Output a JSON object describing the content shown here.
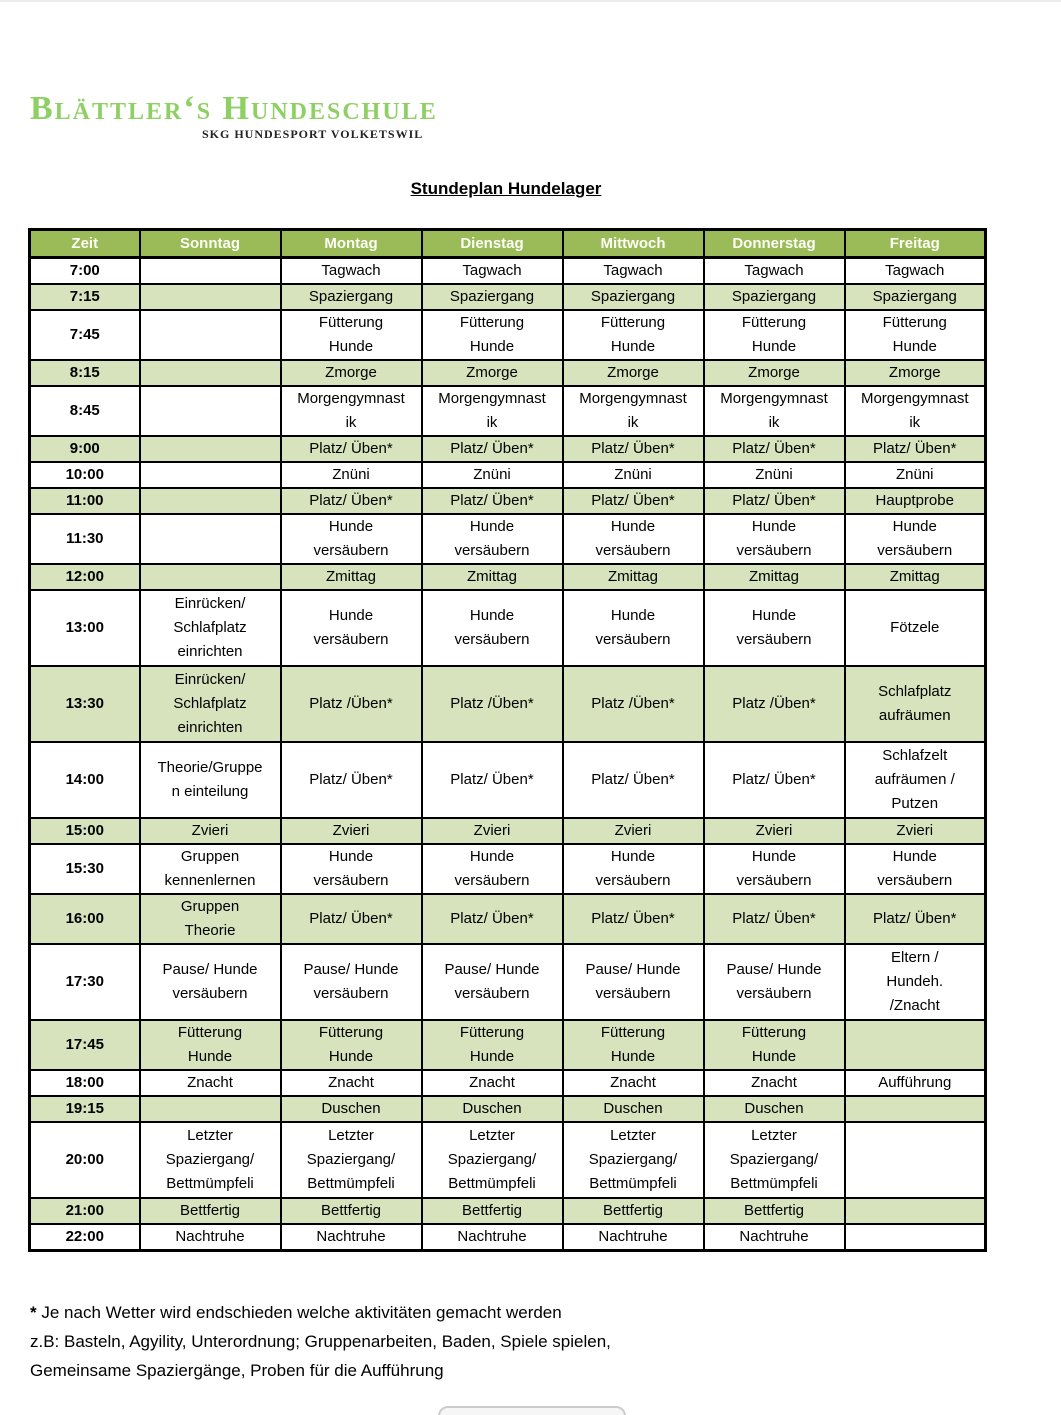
{
  "logo": {
    "title": "Blättler‘s Hundeschule",
    "subtitle": "SKG HUNDESPORT VOLKETSWIL"
  },
  "title": "Stundeplan Hundelager",
  "colors": {
    "logo_green": "#8ED063",
    "header_bg": "#9BBB59",
    "header_text": "#FDFEF6",
    "row_green": "#D6E3BC",
    "border": "#000000"
  },
  "table": {
    "columns": [
      "Zeit",
      "Sonntag",
      "Montag",
      "Dienstag",
      "Mittwoch",
      "Donnerstag",
      "Freitag"
    ],
    "rows": [
      {
        "time": "7:00",
        "shade": false,
        "lines": 1,
        "cells": [
          "",
          "Tagwach",
          "Tagwach",
          "Tagwach",
          "Tagwach",
          "Tagwach"
        ]
      },
      {
        "time": "7:15",
        "shade": true,
        "lines": 1,
        "cells": [
          "",
          "Spaziergang",
          "Spaziergang",
          "Spaziergang",
          "Spaziergang",
          "Spaziergang"
        ]
      },
      {
        "time": "7:45",
        "shade": false,
        "lines": 2,
        "cells": [
          "",
          "Fütterung\nHunde",
          "Fütterung\nHunde",
          "Fütterung\nHunde",
          "Fütterung\nHunde",
          "Fütterung\nHunde"
        ]
      },
      {
        "time": "8:15",
        "shade": true,
        "lines": 1,
        "cells": [
          "",
          "Zmorge",
          "Zmorge",
          "Zmorge",
          "Zmorge",
          "Zmorge"
        ]
      },
      {
        "time": "8:45",
        "shade": false,
        "lines": 2,
        "cells": [
          "",
          "Morgengymnast\nik",
          "Morgengymnast\nik",
          "Morgengymnast\nik",
          "Morgengymnast\nik",
          "Morgengymnast\nik"
        ]
      },
      {
        "time": "9:00",
        "shade": true,
        "lines": 1,
        "cells": [
          "",
          "Platz/ Üben*",
          "Platz/ Üben*",
          "Platz/ Üben*",
          "Platz/ Üben*",
          "Platz/ Üben*"
        ]
      },
      {
        "time": "10:00",
        "shade": false,
        "lines": 1,
        "cells": [
          "",
          "Znüni",
          "Znüni",
          "Znüni",
          "Znüni",
          "Znüni"
        ]
      },
      {
        "time": "11:00",
        "shade": true,
        "lines": 1,
        "cells": [
          "",
          "Platz/ Üben*",
          "Platz/ Üben*",
          "Platz/ Üben*",
          "Platz/ Üben*",
          "Hauptprobe"
        ]
      },
      {
        "time": "11:30",
        "shade": false,
        "lines": 2,
        "cells": [
          "",
          "Hunde\nversäubern",
          "Hunde\nversäubern",
          "Hunde\nversäubern",
          "Hunde\nversäubern",
          "Hunde\nversäubern"
        ]
      },
      {
        "time": "12:00",
        "shade": true,
        "lines": 1,
        "cells": [
          "",
          "Zmittag",
          "Zmittag",
          "Zmittag",
          "Zmittag",
          "Zmittag"
        ]
      },
      {
        "time": "13:00",
        "shade": false,
        "lines": 3,
        "cells": [
          "Einrücken/\nSchlafplatz\neinrichten",
          "Hunde\nversäubern",
          "Hunde\nversäubern",
          "Hunde\nversäubern",
          "Hunde\nversäubern",
          "Fötzele"
        ]
      },
      {
        "time": "13:30",
        "shade": true,
        "lines": 3,
        "cells": [
          "Einrücken/\nSchlafplatz\neinrichten",
          "Platz /Üben*",
          "Platz /Üben*",
          "Platz /Üben*",
          "Platz /Üben*",
          "Schlafplatz\naufräumen"
        ]
      },
      {
        "time": "14:00",
        "shade": false,
        "lines": 3,
        "cells": [
          "Theorie/Gruppe\nn einteilung",
          "Platz/ Üben*",
          "Platz/ Üben*",
          "Platz/ Üben*",
          "Platz/ Üben*",
          "Schlafzelt\naufräumen /\nPutzen"
        ]
      },
      {
        "time": "15:00",
        "shade": true,
        "lines": 1,
        "cells": [
          "Zvieri",
          "Zvieri",
          "Zvieri",
          "Zvieri",
          "Zvieri",
          "Zvieri"
        ]
      },
      {
        "time": "15:30",
        "shade": false,
        "lines": 2,
        "cells": [
          "Gruppen\nkennenlernen",
          "Hunde\nversäubern",
          "Hunde\nversäubern",
          "Hunde\nversäubern",
          "Hunde\nversäubern",
          "Hunde\nversäubern"
        ]
      },
      {
        "time": "16:00",
        "shade": true,
        "lines": 2,
        "cells": [
          "Gruppen\nTheorie",
          "Platz/ Üben*",
          "Platz/ Üben*",
          "Platz/ Üben*",
          "Platz/ Üben*",
          "Platz/ Üben*"
        ]
      },
      {
        "time": "17:30",
        "shade": false,
        "lines": 3,
        "cells": [
          "Pause/ Hunde\nversäubern",
          "Pause/ Hunde\nversäubern",
          "Pause/ Hunde\nversäubern",
          "Pause/ Hunde\nversäubern",
          "Pause/ Hunde\nversäubern",
          "Eltern /\nHundeh.\n/Znacht"
        ]
      },
      {
        "time": "17:45",
        "shade": true,
        "lines": 2,
        "cells": [
          "Fütterung\nHunde",
          "Fütterung\nHunde",
          "Fütterung\nHunde",
          "Fütterung\nHunde",
          "Fütterung\nHunde",
          ""
        ]
      },
      {
        "time": "18:00",
        "shade": false,
        "lines": 1,
        "cells": [
          "Znacht",
          "Znacht",
          "Znacht",
          "Znacht",
          "Znacht",
          "Aufführung"
        ]
      },
      {
        "time": "19:15",
        "shade": true,
        "lines": 1,
        "cells": [
          "",
          "Duschen",
          "Duschen",
          "Duschen",
          "Duschen",
          ""
        ]
      },
      {
        "time": "20:00",
        "shade": false,
        "lines": 3,
        "cells": [
          "Letzter\nSpaziergang/\nBettmümpfeli",
          "Letzter\nSpaziergang/\nBettmümpfeli",
          "Letzter\nSpaziergang/\nBettmümpfeli",
          "Letzter\nSpaziergang/\nBettmümpfeli",
          "Letzter\nSpaziergang/\nBettmümpfeli",
          ""
        ]
      },
      {
        "time": "21:00",
        "shade": true,
        "lines": 1,
        "cells": [
          "Bettfertig",
          "Bettfertig",
          "Bettfertig",
          "Bettfertig",
          "Bettfertig",
          ""
        ]
      },
      {
        "time": "22:00",
        "shade": false,
        "lines": 1,
        "cells": [
          "Nachtruhe",
          "Nachtruhe",
          "Nachtruhe",
          "Nachtruhe",
          "Nachtruhe",
          ""
        ]
      }
    ]
  },
  "footnote": {
    "marker": "*",
    "line1": "Je nach Wetter wird endschieden welche aktivitäten gemacht werden",
    "line2": "z.B: Basteln, Agyility, Unterordnung; Gruppenarbeiten, Baden, Spiele spielen,",
    "line3": "Gemeinsame Spaziergänge, Proben für die Aufführung"
  }
}
